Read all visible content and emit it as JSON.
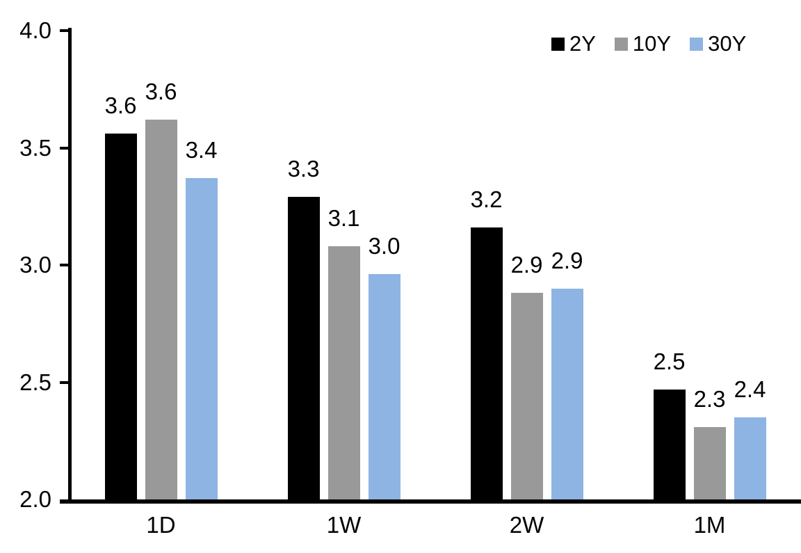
{
  "chart_data": {
    "type": "bar",
    "title": "",
    "xlabel": "",
    "ylabel": "",
    "categories": [
      "1D",
      "1W",
      "2W",
      "1M"
    ],
    "series": [
      {
        "name": "2Y",
        "color": "#000000",
        "values": [
          3.56,
          3.29,
          3.16,
          2.47
        ],
        "labels": [
          "3.6",
          "3.3",
          "3.2",
          "2.5"
        ]
      },
      {
        "name": "10Y",
        "color": "#999999",
        "values": [
          3.62,
          3.08,
          2.88,
          2.31
        ],
        "labels": [
          "3.6",
          "3.1",
          "2.9",
          "2.3"
        ]
      },
      {
        "name": "30Y",
        "color": "#8DB4E2",
        "values": [
          3.37,
          2.96,
          2.9,
          2.35
        ],
        "labels": [
          "3.4",
          "3.0",
          "2.9",
          "2.4"
        ]
      }
    ],
    "y_axis": {
      "min": 2.0,
      "max": 4.0,
      "tick_values": [
        4.0,
        3.5,
        3.0,
        2.5,
        2.0
      ],
      "tick_labels": [
        "4.0",
        "3.5",
        "3.0",
        "2.5",
        "2.0"
      ]
    },
    "legend": {
      "position": "top-right",
      "entries": [
        "2Y",
        "10Y",
        "30Y"
      ]
    },
    "grid": false,
    "axis_color": "#000000",
    "background_color": "#FFFFFF",
    "ylim": [
      2.0,
      4.0
    ]
  }
}
